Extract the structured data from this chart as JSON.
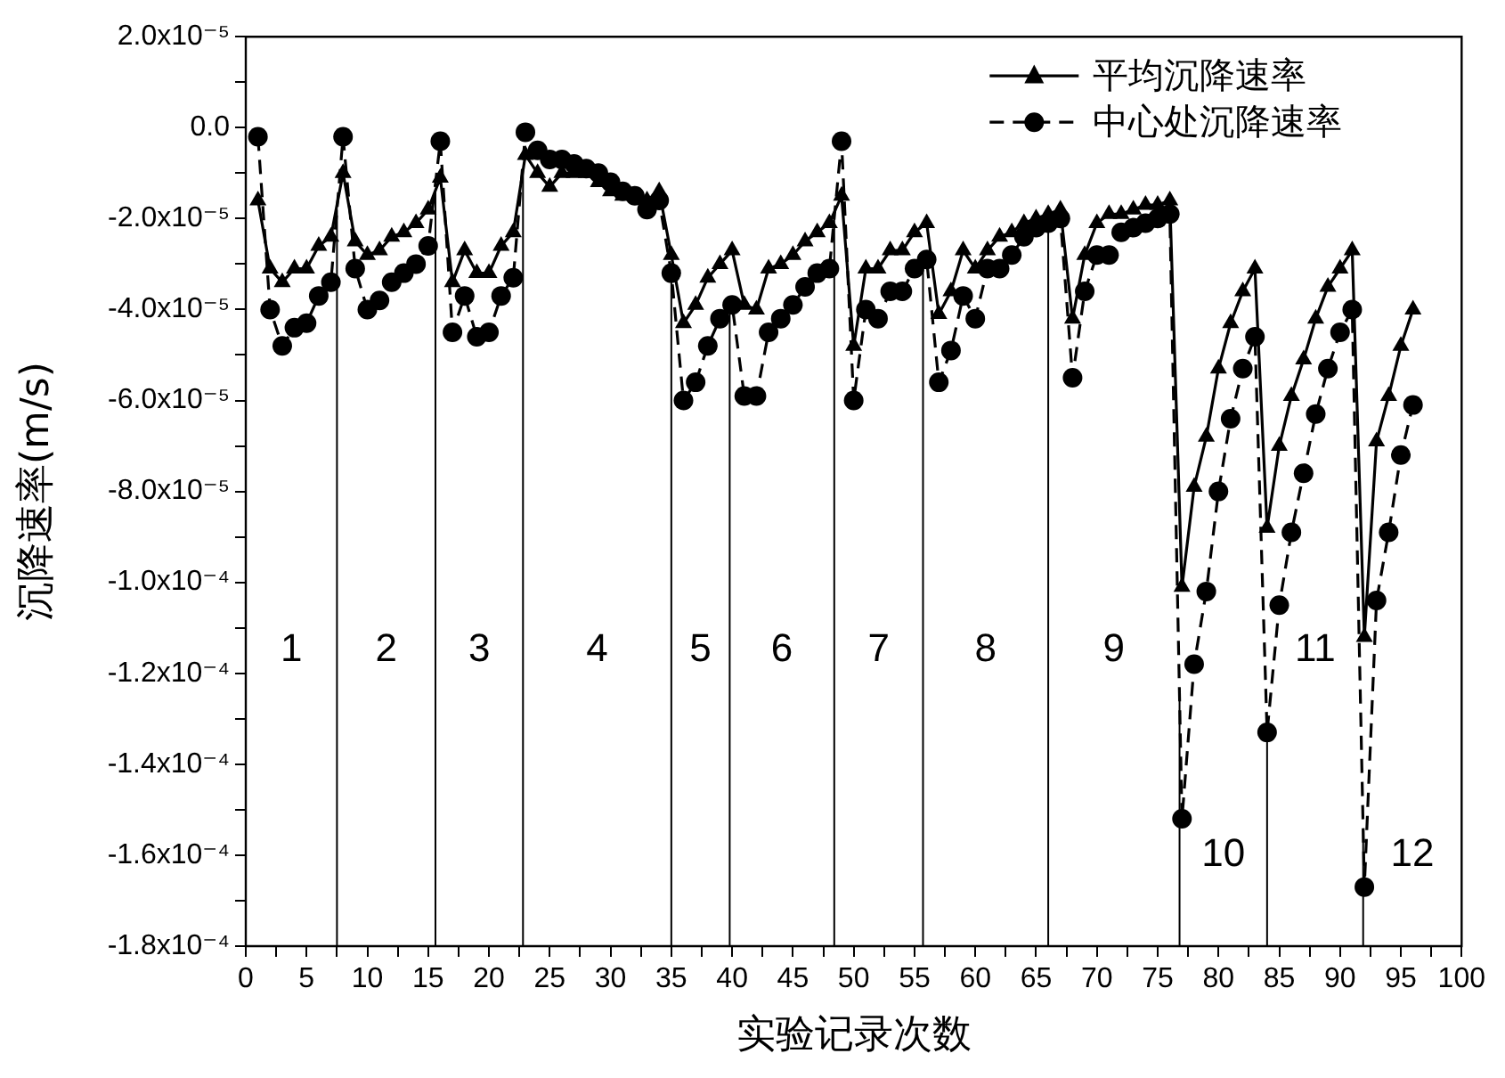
{
  "chart_data": {
    "type": "line",
    "xlabel": "实验记录次数",
    "ylabel": "沉降速率(m/s)",
    "x": [
      1,
      2,
      3,
      4,
      5,
      6,
      7,
      8,
      9,
      10,
      11,
      12,
      13,
      14,
      15,
      16,
      17,
      18,
      19,
      20,
      21,
      22,
      23,
      24,
      25,
      26,
      27,
      28,
      29,
      30,
      31,
      32,
      33,
      34,
      35,
      36,
      37,
      38,
      39,
      40,
      41,
      42,
      43,
      44,
      45,
      46,
      47,
      48,
      49,
      50,
      51,
      52,
      53,
      54,
      55,
      56,
      57,
      58,
      59,
      60,
      61,
      62,
      63,
      64,
      65,
      66,
      67,
      68,
      69,
      70,
      71,
      72,
      73,
      74,
      75,
      76,
      77,
      78,
      79,
      80,
      81,
      82,
      83,
      84,
      85,
      86,
      87,
      88,
      89,
      90,
      91,
      92,
      93,
      94,
      95,
      96
    ],
    "series": [
      {
        "name": "平均沉降速率",
        "color": "#000000",
        "marker": "triangle",
        "line_style": "solid",
        "values": [
          -1.6e-05,
          -3.1e-05,
          -3.4e-05,
          -3.1e-05,
          -3.1e-05,
          -2.6e-05,
          -2.4e-05,
          -1e-05,
          -2.5e-05,
          -2.8e-05,
          -2.7e-05,
          -2.4e-05,
          -2.3e-05,
          -2.1e-05,
          -1.8e-05,
          -1.1e-05,
          -3.4e-05,
          -2.7e-05,
          -3.2e-05,
          -3.2e-05,
          -2.6e-05,
          -2.3e-05,
          -6e-06,
          -1e-05,
          -1.3e-05,
          -1e-05,
          -1e-05,
          -1e-05,
          -1.2e-05,
          -1.4e-05,
          -1.5e-05,
          -1.5e-05,
          -1.6e-05,
          -1.4e-05,
          -2.8e-05,
          -4.3e-05,
          -3.9e-05,
          -3.3e-05,
          -3e-05,
          -2.7e-05,
          -3.9e-05,
          -4e-05,
          -3.1e-05,
          -3e-05,
          -2.8e-05,
          -2.5e-05,
          -2.3e-05,
          -2.1e-05,
          -1.5e-05,
          -4.8e-05,
          -3.1e-05,
          -3.1e-05,
          -2.7e-05,
          -2.7e-05,
          -2.3e-05,
          -2.1e-05,
          -4.1e-05,
          -3.6e-05,
          -2.7e-05,
          -3.1e-05,
          -2.7e-05,
          -2.4e-05,
          -2.3e-05,
          -2.1e-05,
          -2e-05,
          -1.9e-05,
          -1.8e-05,
          -4.2e-05,
          -2.8e-05,
          -2.1e-05,
          -1.9e-05,
          -1.9e-05,
          -1.8e-05,
          -1.7e-05,
          -1.7e-05,
          -1.6e-05,
          -0.000101,
          -7.9e-05,
          -6.8e-05,
          -5.3e-05,
          -4.3e-05,
          -3.6e-05,
          -3.1e-05,
          -8.8e-05,
          -7e-05,
          -5.9e-05,
          -5.1e-05,
          -4.2e-05,
          -3.5e-05,
          -3.1e-05,
          -2.7e-05,
          -0.000112,
          -6.9e-05,
          -5.9e-05,
          -4.8e-05,
          -4e-05
        ]
      },
      {
        "name": "中心处沉降速率",
        "color": "#000000",
        "marker": "circle",
        "line_style": "dashed",
        "values": [
          -2e-06,
          -4e-05,
          -4.8e-05,
          -4.4e-05,
          -4.3e-05,
          -3.7e-05,
          -3.4e-05,
          -2e-06,
          -3.1e-05,
          -4e-05,
          -3.8e-05,
          -3.4e-05,
          -3.2e-05,
          -3e-05,
          -2.6e-05,
          -3e-06,
          -4.5e-05,
          -3.7e-05,
          -4.6e-05,
          -4.5e-05,
          -3.7e-05,
          -3.3e-05,
          -1e-06,
          -5e-06,
          -7e-06,
          -7e-06,
          -8e-06,
          -9e-06,
          -1e-05,
          -1.2e-05,
          -1.4e-05,
          -1.5e-05,
          -1.8e-05,
          -1.6e-05,
          -3.2e-05,
          -6e-05,
          -5.6e-05,
          -4.8e-05,
          -4.2e-05,
          -3.9e-05,
          -5.9e-05,
          -5.9e-05,
          -4.5e-05,
          -4.2e-05,
          -3.9e-05,
          -3.5e-05,
          -3.2e-05,
          -3.1e-05,
          -3e-06,
          -6e-05,
          -4e-05,
          -4.2e-05,
          -3.6e-05,
          -3.6e-05,
          -3.1e-05,
          -2.9e-05,
          -5.6e-05,
          -4.9e-05,
          -3.7e-05,
          -4.2e-05,
          -3.1e-05,
          -3.1e-05,
          -2.8e-05,
          -2.4e-05,
          -2.2e-05,
          -2.1e-05,
          -2e-05,
          -5.5e-05,
          -3.6e-05,
          -2.8e-05,
          -2.8e-05,
          -2.3e-05,
          -2.2e-05,
          -2.1e-05,
          -2e-05,
          -1.9e-05,
          -0.000152,
          -0.000118,
          -0.000102,
          -8e-05,
          -6.4e-05,
          -5.3e-05,
          -4.6e-05,
          -0.000133,
          -0.000105,
          -8.9e-05,
          -7.6e-05,
          -6.3e-05,
          -5.3e-05,
          -4.5e-05,
          -4e-05,
          -0.000167,
          -0.000104,
          -8.9e-05,
          -7.2e-05,
          -6.1e-05
        ]
      }
    ],
    "xlim": [
      0,
      100
    ],
    "xticks": [
      0,
      {
        "value": 2.5,
        "label": null
      },
      5,
      {
        "value": 7.5,
        "label": null
      },
      10,
      {
        "value": 12.5,
        "label": null
      },
      15,
      {
        "value": 17.5,
        "label": null
      },
      20,
      {
        "value": 22.5,
        "label": null
      },
      25,
      {
        "value": 27.5,
        "label": null
      },
      30,
      {
        "value": 32.5,
        "label": null
      },
      35,
      {
        "value": 37.5,
        "label": null
      },
      40,
      {
        "value": 42.5,
        "label": null
      },
      45,
      {
        "value": 47.5,
        "label": null
      },
      50,
      {
        "value": 52.5,
        "label": null
      },
      55,
      {
        "value": 57.5,
        "label": null
      },
      60,
      {
        "value": 62.5,
        "label": null
      },
      65,
      {
        "value": 67.5,
        "label": null
      },
      70,
      {
        "value": 72.5,
        "label": null
      },
      75,
      {
        "value": 77.5,
        "label": null
      },
      80,
      {
        "value": 82.5,
        "label": null
      },
      85,
      {
        "value": 87.5,
        "label": null
      },
      90,
      {
        "value": 92.5,
        "label": null
      },
      95,
      {
        "value": 97.5,
        "label": null
      },
      100
    ],
    "ylim": [
      -0.00018,
      2e-05
    ],
    "yticks": [
      {
        "value": 2e-05,
        "label": "2.0x10⁻⁵"
      },
      {
        "value": 1e-05,
        "label": null
      },
      {
        "value": 0,
        "label": "0.0"
      },
      {
        "value": -1e-05,
        "label": null
      },
      {
        "value": -2e-05,
        "label": "-2.0x10⁻⁵"
      },
      {
        "value": -3e-05,
        "label": null
      },
      {
        "value": -4e-05,
        "label": "-4.0x10⁻⁵"
      },
      {
        "value": -5e-05,
        "label": null
      },
      {
        "value": -6e-05,
        "label": "-6.0x10⁻⁵"
      },
      {
        "value": -7e-05,
        "label": null
      },
      {
        "value": -8e-05,
        "label": "-8.0x10⁻⁵"
      },
      {
        "value": -9e-05,
        "label": null
      },
      {
        "value": -0.0001,
        "label": "-1.0x10⁻⁴"
      },
      {
        "value": -0.00011,
        "label": null
      },
      {
        "value": -0.00012,
        "label": "-1.2x10⁻⁴"
      },
      {
        "value": -0.00013,
        "label": null
      },
      {
        "value": -0.00014,
        "label": "-1.4x10⁻⁴"
      },
      {
        "value": -0.00015,
        "label": null
      },
      {
        "value": -0.00016,
        "label": "-1.6x10⁻⁴"
      },
      {
        "value": -0.00017,
        "label": null
      },
      {
        "value": -0.00018,
        "label": "-1.8x10⁻⁴"
      }
    ],
    "ref_lines": [
      {
        "axis": "x",
        "value": 7.5
      },
      {
        "axis": "x",
        "value": 15.6
      },
      {
        "axis": "x",
        "value": 22.8
      },
      {
        "axis": "x",
        "value": 35
      },
      {
        "axis": "x",
        "value": 39.8
      },
      {
        "axis": "x",
        "value": 48.4
      },
      {
        "axis": "x",
        "value": 55.7
      },
      {
        "axis": "x",
        "value": 66
      },
      {
        "axis": "x",
        "value": 76.8
      },
      {
        "axis": "x",
        "value": 84
      },
      {
        "axis": "x",
        "value": 91.9
      }
    ],
    "annotations": [
      "1",
      "2",
      "3",
      "4",
      "5",
      "6",
      "7",
      "8",
      "9",
      "10",
      "11",
      "12"
    ],
    "legend": "top right",
    "grid": false
  }
}
